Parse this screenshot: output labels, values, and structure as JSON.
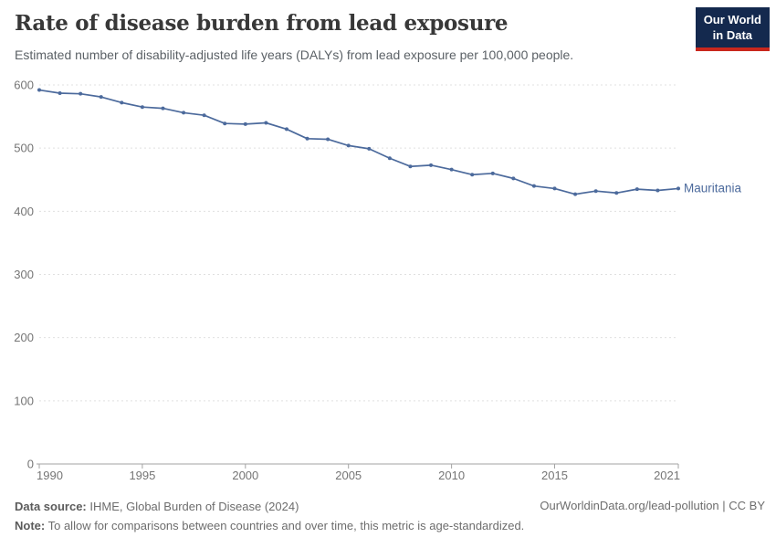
{
  "header": {
    "title": "Rate of disease burden from lead exposure",
    "subtitle": "Estimated number of disability-adjusted life years (DALYs) from lead exposure per 100,000 people.",
    "logo": {
      "line1": "Our World",
      "line2": "in Data"
    }
  },
  "chart_data": {
    "type": "line",
    "title": "Rate of disease burden from lead exposure",
    "xlabel": "",
    "ylabel": "",
    "xlim": [
      1990,
      2021
    ],
    "ylim": [
      0,
      600
    ],
    "xticks": [
      1990,
      1995,
      2000,
      2005,
      2010,
      2015,
      2021
    ],
    "yticks": [
      0,
      100,
      200,
      300,
      400,
      500,
      600
    ],
    "grid": "horizontal-dashed",
    "legend_position": "end-of-line-label",
    "x": [
      1990,
      1991,
      1992,
      1993,
      1994,
      1995,
      1996,
      1997,
      1998,
      1999,
      2000,
      2001,
      2002,
      2003,
      2004,
      2005,
      2006,
      2007,
      2008,
      2009,
      2010,
      2011,
      2012,
      2013,
      2014,
      2015,
      2016,
      2017,
      2018,
      2019,
      2020,
      2021
    ],
    "series": [
      {
        "name": "Mauritania",
        "color": "#4C6A9C",
        "values": [
          592,
          587,
          586,
          581,
          572,
          565,
          563,
          556,
          552,
          539,
          538,
          540,
          530,
          515,
          514,
          504,
          499,
          484,
          471,
          473,
          466,
          458,
          460,
          452,
          440,
          436,
          427,
          432,
          429,
          435,
          433,
          436
        ]
      }
    ]
  },
  "footer": {
    "source_label": "Data source:",
    "source_text": "IHME, Global Burden of Disease (2024)",
    "link_text": "OurWorldinData.org/lead-pollution | CC BY",
    "note_label": "Note:",
    "note_text": "To allow for comparisons between countries and over time, this metric is age-standardized."
  },
  "colors": {
    "line": "#4C6A9C",
    "grid": "#e0e0e0",
    "axis": "#a3a3a3",
    "tick_label": "#757575",
    "title": "#383838",
    "subtitle": "#5b6166",
    "footer_text": "#6d6d6d",
    "logo_bg": "#14294e",
    "logo_accent": "#c9271d"
  }
}
